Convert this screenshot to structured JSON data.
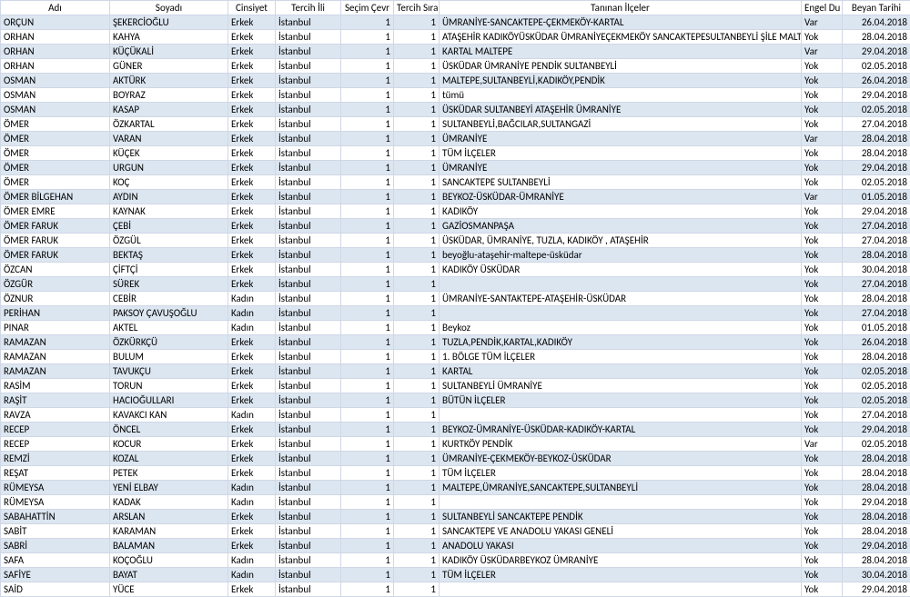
{
  "columns": [
    {
      "key": "adi",
      "label": "Adı",
      "class": "col-adi"
    },
    {
      "key": "soyadi",
      "label": "Soyadı",
      "class": "col-soyadi"
    },
    {
      "key": "cinsiyet",
      "label": "Cinsiyet",
      "class": "col-cinsiyet"
    },
    {
      "key": "tercih",
      "label": "Tercih İli",
      "class": "col-tercih"
    },
    {
      "key": "secim",
      "label": "Seçim Çevr",
      "class": "col-secim"
    },
    {
      "key": "sira",
      "label": "Tercih Sıra",
      "class": "col-sira"
    },
    {
      "key": "ilceler",
      "label": "Tanınan İlçeler",
      "class": "col-ilceler"
    },
    {
      "key": "engel",
      "label": "Engel Du",
      "class": "col-engel"
    },
    {
      "key": "tarih",
      "label": "Beyan Tarihi",
      "class": "col-tarih"
    }
  ],
  "rows": [
    {
      "adi": "ORÇUN",
      "soyadi": "ŞEKERCİOĞLU",
      "cinsiyet": "Erkek",
      "tercih": "İstanbul",
      "secim": "1",
      "sira": "1",
      "ilceler": "ÜMRANİYE-SANCAKTEPE-ÇEKMEKÖY-KARTAL",
      "engel": "Var",
      "tarih": "26.04.2018",
      "alt": true
    },
    {
      "adi": "ORHAN",
      "soyadi": "KAHYA",
      "cinsiyet": "Erkek",
      "tercih": "İstanbul",
      "secim": "1",
      "sira": "1",
      "ilceler": "ATAŞEHİR KADIKÖYÜSKÜDAR ÜMRANİYEÇEKMEKÖY SANCAKTEPESULTANBEYLİ ŞİLE MALTEPE",
      "engel": "Yok",
      "tarih": "28.04.2018",
      "alt": false
    },
    {
      "adi": "ORHAN",
      "soyadi": "KÜÇÜKALİ",
      "cinsiyet": "Erkek",
      "tercih": "İstanbul",
      "secim": "1",
      "sira": "1",
      "ilceler": "KARTAL MALTEPE",
      "engel": "Var",
      "tarih": "29.04.2018",
      "alt": true
    },
    {
      "adi": "ORHAN",
      "soyadi": "GÜNER",
      "cinsiyet": "Erkek",
      "tercih": "İstanbul",
      "secim": "1",
      "sira": "1",
      "ilceler": "ÜSKÜDAR ÜMRANİYE PENDİK SULTANBEYLİ",
      "engel": "Yok",
      "tarih": "02.05.2018",
      "alt": false
    },
    {
      "adi": "OSMAN",
      "soyadi": "AKTÜRK",
      "cinsiyet": "Erkek",
      "tercih": "İstanbul",
      "secim": "1",
      "sira": "1",
      "ilceler": "MALTEPE,SULTANBEYLİ,KADIKÖY,PENDİK",
      "engel": "Yok",
      "tarih": "26.04.2018",
      "alt": true
    },
    {
      "adi": "OSMAN",
      "soyadi": "BOYRAZ",
      "cinsiyet": "Erkek",
      "tercih": "İstanbul",
      "secim": "1",
      "sira": "1",
      "ilceler": "tümü",
      "engel": "Yok",
      "tarih": "29.04.2018",
      "alt": false
    },
    {
      "adi": "OSMAN",
      "soyadi": "KASAP",
      "cinsiyet": "Erkek",
      "tercih": "İstanbul",
      "secim": "1",
      "sira": "1",
      "ilceler": "ÜSKÜDAR SULTANBEYİ ATAŞEHİR ÜMRANİYE",
      "engel": "Yok",
      "tarih": "02.05.2018",
      "alt": true
    },
    {
      "adi": "ÖMER",
      "soyadi": "ÖZKARTAL",
      "cinsiyet": "Erkek",
      "tercih": "İstanbul",
      "secim": "1",
      "sira": "1",
      "ilceler": "SULTANBEYLİ,BAĞCILAR,SULTANGAZİ",
      "engel": "Yok",
      "tarih": "27.04.2018",
      "alt": false
    },
    {
      "adi": "ÖMER",
      "soyadi": "VARAN",
      "cinsiyet": "Erkek",
      "tercih": "İstanbul",
      "secim": "1",
      "sira": "1",
      "ilceler": "ÜMRANİYE",
      "engel": "Var",
      "tarih": "28.04.2018",
      "alt": true
    },
    {
      "adi": "ÖMER",
      "soyadi": "KÜÇEK",
      "cinsiyet": "Erkek",
      "tercih": "İstanbul",
      "secim": "1",
      "sira": "1",
      "ilceler": "TÜM İLÇELER",
      "engel": "Yok",
      "tarih": "28.04.2018",
      "alt": false
    },
    {
      "adi": "ÖMER",
      "soyadi": "URGUN",
      "cinsiyet": "Erkek",
      "tercih": "İstanbul",
      "secim": "1",
      "sira": "1",
      "ilceler": "ÜMRANİYE",
      "engel": "Yok",
      "tarih": "29.04.2018",
      "alt": true
    },
    {
      "adi": "ÖMER",
      "soyadi": "KOÇ",
      "cinsiyet": "Erkek",
      "tercih": "İstanbul",
      "secim": "1",
      "sira": "1",
      "ilceler": "SANCAKTEPE SULTANBEYLİ",
      "engel": "Yok",
      "tarih": "02.05.2018",
      "alt": false
    },
    {
      "adi": "ÖMER BİLGEHAN",
      "soyadi": "AYDIN",
      "cinsiyet": "Erkek",
      "tercih": "İstanbul",
      "secim": "1",
      "sira": "1",
      "ilceler": "BEYKOZ-ÜSKÜDAR-ÜMRANİYE",
      "engel": "Var",
      "tarih": "01.05.2018",
      "alt": true
    },
    {
      "adi": "ÖMER EMRE",
      "soyadi": "KAYNAK",
      "cinsiyet": "Erkek",
      "tercih": "İstanbul",
      "secim": "1",
      "sira": "1",
      "ilceler": "KADIKÖY",
      "engel": "Yok",
      "tarih": "29.04.2018",
      "alt": false
    },
    {
      "adi": "ÖMER FARUK",
      "soyadi": "ÇEBİ",
      "cinsiyet": "Erkek",
      "tercih": "İstanbul",
      "secim": "1",
      "sira": "1",
      "ilceler": "GAZİOSMANPAŞA",
      "engel": "Yok",
      "tarih": "27.04.2018",
      "alt": true
    },
    {
      "adi": "ÖMER FARUK",
      "soyadi": "ÖZGÜL",
      "cinsiyet": "Erkek",
      "tercih": "İstanbul",
      "secim": "1",
      "sira": "1",
      "ilceler": "ÜSKÜDAR, ÜMRANİYE, TUZLA, KADIKÖY , ATAŞEHİR",
      "engel": "Yok",
      "tarih": "27.04.2018",
      "alt": false
    },
    {
      "adi": "ÖMER FARUK",
      "soyadi": "BEKTAŞ",
      "cinsiyet": "Erkek",
      "tercih": "İstanbul",
      "secim": "1",
      "sira": "1",
      "ilceler": "beyoğlu-ataşehir-maltepe-üsküdar",
      "engel": "Yok",
      "tarih": "28.04.2018",
      "alt": true
    },
    {
      "adi": "ÖZCAN",
      "soyadi": "ÇİFTÇİ",
      "cinsiyet": "Erkek",
      "tercih": "İstanbul",
      "secim": "1",
      "sira": "1",
      "ilceler": "KADIKÖY ÜSKÜDAR",
      "engel": "Yok",
      "tarih": "30.04.2018",
      "alt": false
    },
    {
      "adi": "ÖZGÜR",
      "soyadi": "SÜREK",
      "cinsiyet": "Erkek",
      "tercih": "İstanbul",
      "secim": "1",
      "sira": "1",
      "ilceler": "",
      "engel": "Yok",
      "tarih": "27.04.2018",
      "alt": true
    },
    {
      "adi": "ÖZNUR",
      "soyadi": "CEBİR",
      "cinsiyet": "Kadın",
      "tercih": "İstanbul",
      "secim": "1",
      "sira": "1",
      "ilceler": "ÜMRANİYE-SANTAKTEPE-ATAŞEHİR-ÜSKÜDAR",
      "engel": "Yok",
      "tarih": "28.04.2018",
      "alt": false
    },
    {
      "adi": "PERİHAN",
      "soyadi": "PAKSOY ÇAVUŞOĞLU",
      "cinsiyet": "Kadın",
      "tercih": "İstanbul",
      "secim": "1",
      "sira": "1",
      "ilceler": "",
      "engel": "Yok",
      "tarih": "27.04.2018",
      "alt": true
    },
    {
      "adi": "PINAR",
      "soyadi": "AKTEL",
      "cinsiyet": "Kadın",
      "tercih": "İstanbul",
      "secim": "1",
      "sira": "1",
      "ilceler": "Beykoz",
      "engel": "Yok",
      "tarih": "01.05.2018",
      "alt": false
    },
    {
      "adi": "RAMAZAN",
      "soyadi": "ÖZKÜRKÇÜ",
      "cinsiyet": "Erkek",
      "tercih": "İstanbul",
      "secim": "1",
      "sira": "1",
      "ilceler": "TUZLA,PENDİK,KARTAL,KADIKÖY",
      "engel": "Yok",
      "tarih": "26.04.2018",
      "alt": true
    },
    {
      "adi": "RAMAZAN",
      "soyadi": "BULUM",
      "cinsiyet": "Erkek",
      "tercih": "İstanbul",
      "secim": "1",
      "sira": "1",
      "ilceler": "1. BÖLGE TÜM İLÇELER",
      "engel": "Yok",
      "tarih": "28.04.2018",
      "alt": false
    },
    {
      "adi": "RAMAZAN",
      "soyadi": "TAVUKÇU",
      "cinsiyet": "Erkek",
      "tercih": "İstanbul",
      "secim": "1",
      "sira": "1",
      "ilceler": "KARTAL",
      "engel": "Yok",
      "tarih": "02.05.2018",
      "alt": true
    },
    {
      "adi": "RASİM",
      "soyadi": "TORUN",
      "cinsiyet": "Erkek",
      "tercih": "İstanbul",
      "secim": "1",
      "sira": "1",
      "ilceler": "SULTANBEYLİ ÜMRANİYE",
      "engel": "Yok",
      "tarih": "02.05.2018",
      "alt": false
    },
    {
      "adi": "RAŞİT",
      "soyadi": "HACIOĞULLARI",
      "cinsiyet": "Erkek",
      "tercih": "İstanbul",
      "secim": "1",
      "sira": "1",
      "ilceler": "BÜTÜN İLÇELER",
      "engel": "Yok",
      "tarih": "02.05.2018",
      "alt": true
    },
    {
      "adi": "RAVZA",
      "soyadi": "KAVAKCI KAN",
      "cinsiyet": "Kadın",
      "tercih": "İstanbul",
      "secim": "1",
      "sira": "1",
      "ilceler": "",
      "engel": "Yok",
      "tarih": "27.04.2018",
      "alt": false
    },
    {
      "adi": "RECEP",
      "soyadi": "ÖNCEL",
      "cinsiyet": "Erkek",
      "tercih": "İstanbul",
      "secim": "1",
      "sira": "1",
      "ilceler": "BEYKOZ-ÜMRANİYE-ÜSKÜDAR-KADIKÖY-KARTAL",
      "engel": "Yok",
      "tarih": "29.04.2018",
      "alt": true
    },
    {
      "adi": "RECEP",
      "soyadi": "KOCUR",
      "cinsiyet": "Erkek",
      "tercih": "İstanbul",
      "secim": "1",
      "sira": "1",
      "ilceler": "KURTKÖY PENDİK",
      "engel": "Var",
      "tarih": "02.05.2018",
      "alt": false
    },
    {
      "adi": "REMZİ",
      "soyadi": "KOZAL",
      "cinsiyet": "Erkek",
      "tercih": "İstanbul",
      "secim": "1",
      "sira": "1",
      "ilceler": "ÜMRANİYE-ÇEKMEKÖY-BEYKOZ-ÜSKÜDAR",
      "engel": "Yok",
      "tarih": "28.04.2018",
      "alt": true
    },
    {
      "adi": "REŞAT",
      "soyadi": "PETEK",
      "cinsiyet": "Erkek",
      "tercih": "İstanbul",
      "secim": "1",
      "sira": "1",
      "ilceler": "TÜM İLÇELER",
      "engel": "Yok",
      "tarih": "28.04.2018",
      "alt": false
    },
    {
      "adi": "RÜMEYSA",
      "soyadi": "YENİ ELBAY",
      "cinsiyet": "Kadın",
      "tercih": "İstanbul",
      "secim": "1",
      "sira": "1",
      "ilceler": "MALTEPE,ÜMRANİYE,SANCAKTEPE,SULTANBEYLİ",
      "engel": "Yok",
      "tarih": "28.04.2018",
      "alt": true
    },
    {
      "adi": "RÜMEYSA",
      "soyadi": "KADAK",
      "cinsiyet": "Kadın",
      "tercih": "İstanbul",
      "secim": "1",
      "sira": "1",
      "ilceler": "",
      "engel": "Yok",
      "tarih": "29.04.2018",
      "alt": false
    },
    {
      "adi": "SABAHATTİN",
      "soyadi": "ARSLAN",
      "cinsiyet": "Erkek",
      "tercih": "İstanbul",
      "secim": "1",
      "sira": "1",
      "ilceler": "SULTANBEYLİ SANCAKTEPE PENDİK",
      "engel": "Yok",
      "tarih": "28.04.2018",
      "alt": true
    },
    {
      "adi": "SABİT",
      "soyadi": "KARAMAN",
      "cinsiyet": "Erkek",
      "tercih": "İstanbul",
      "secim": "1",
      "sira": "1",
      "ilceler": "SANCAKTEPE VE ANADOLU YAKASI GENELİ",
      "engel": "Yok",
      "tarih": "28.04.2018",
      "alt": false
    },
    {
      "adi": "SABRİ",
      "soyadi": "BALAMAN",
      "cinsiyet": "Erkek",
      "tercih": "İstanbul",
      "secim": "1",
      "sira": "1",
      "ilceler": "ANADOLU YAKASI",
      "engel": "Yok",
      "tarih": "29.04.2018",
      "alt": true
    },
    {
      "adi": "SAFA",
      "soyadi": "KOÇOĞLU",
      "cinsiyet": "Kadın",
      "tercih": "İstanbul",
      "secim": "1",
      "sira": "1",
      "ilceler": "KADIKÖY ÜSKÜDARBEYKOZ ÜMRANİYE",
      "engel": "Yok",
      "tarih": "28.04.2018",
      "alt": false
    },
    {
      "adi": "SAFİYE",
      "soyadi": "BAYAT",
      "cinsiyet": "Kadın",
      "tercih": "İstanbul",
      "secim": "1",
      "sira": "1",
      "ilceler": "TÜM İLÇELER",
      "engel": "Yok",
      "tarih": "30.04.2018",
      "alt": true
    },
    {
      "adi": "SAİD",
      "soyadi": "YÜCE",
      "cinsiyet": "Erkek",
      "tercih": "İstanbul",
      "secim": "1",
      "sira": "1",
      "ilceler": "",
      "engel": "Yok",
      "tarih": "29.04.2018",
      "alt": false
    }
  ]
}
